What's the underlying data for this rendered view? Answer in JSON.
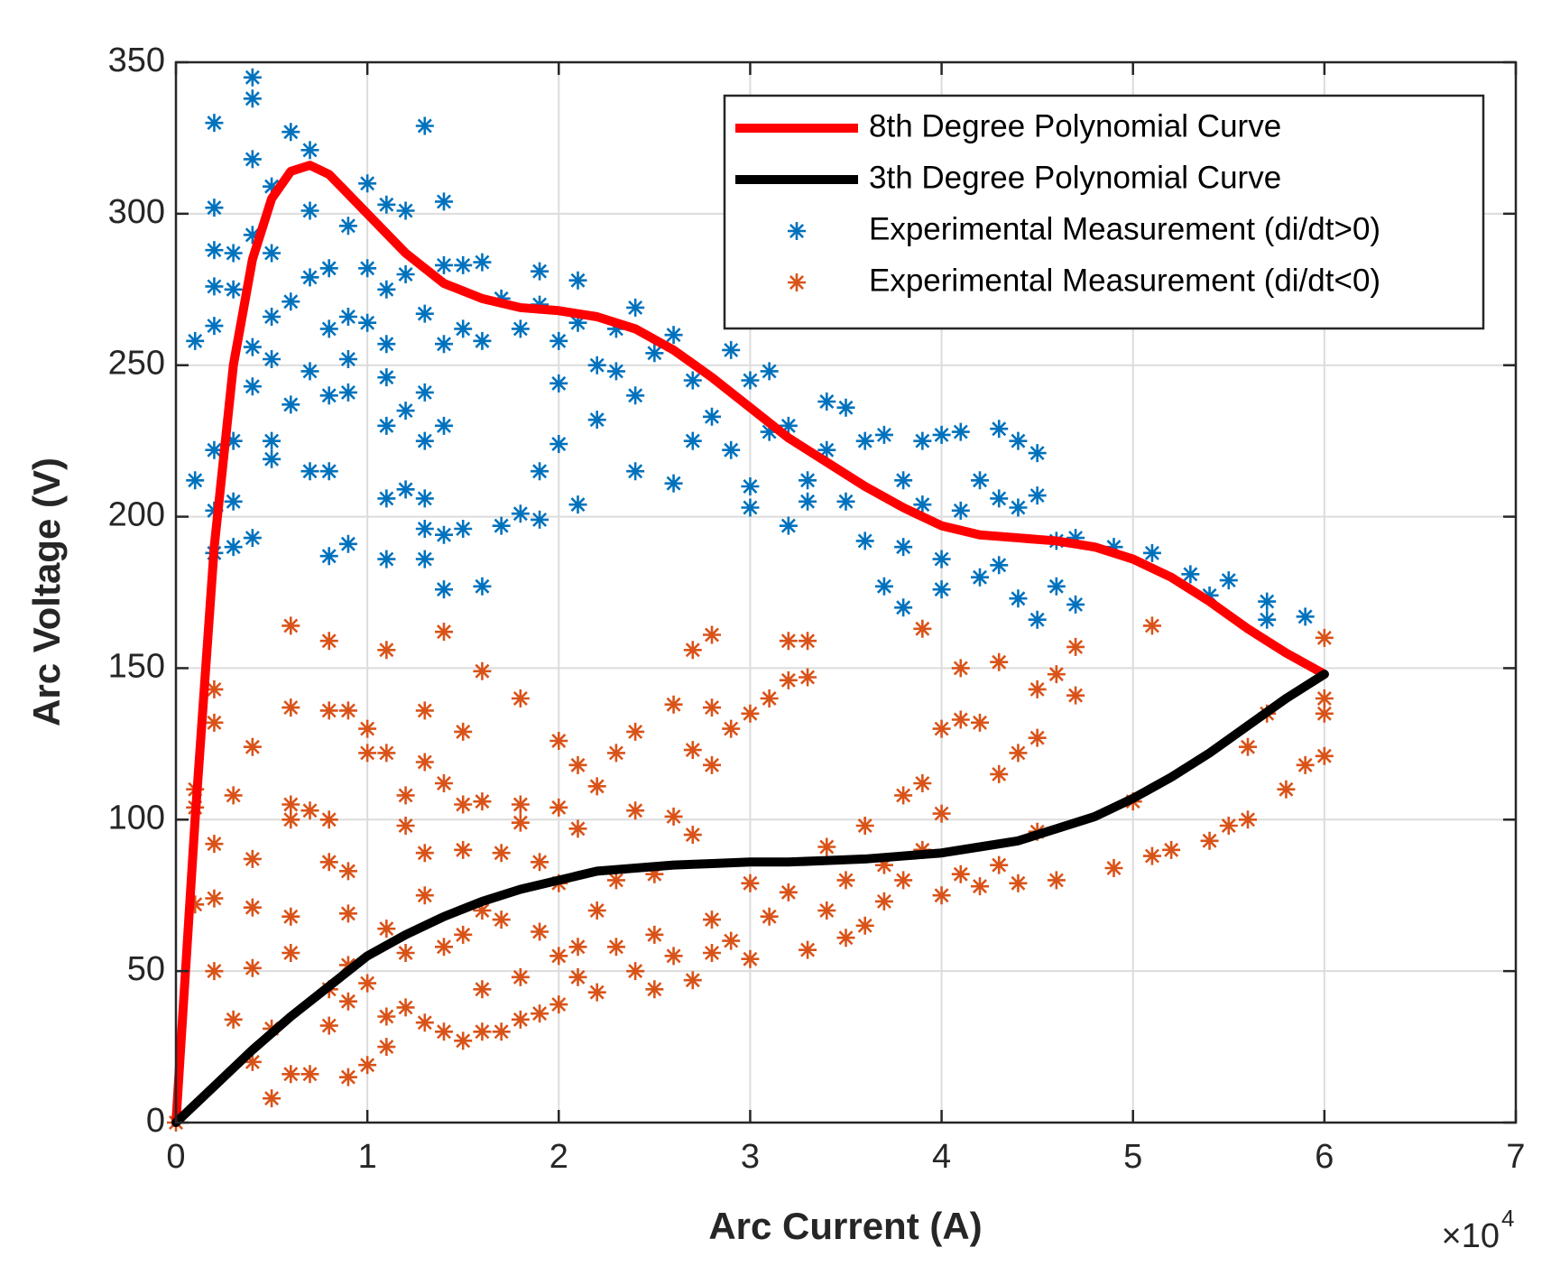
{
  "chart_data": {
    "type": "line",
    "xlabel": "Arc Current (A)",
    "ylabel": "Arc Voltage (V)",
    "x_multiplier": {
      "base": "×10",
      "exponent": "4"
    },
    "xlim": [
      0,
      7
    ],
    "xticks": [
      0,
      1,
      2,
      3,
      4,
      5,
      6,
      7
    ],
    "ylim": [
      0,
      350
    ],
    "yticks": [
      0,
      50,
      100,
      150,
      200,
      250,
      300,
      350
    ],
    "grid": true,
    "legend": "northeast",
    "series": [
      {
        "name": "8th Degree Polynomial Curve",
        "type": "line",
        "color": "#ff0000",
        "x": [
          0,
          0.1,
          0.2,
          0.3,
          0.4,
          0.5,
          0.6,
          0.7,
          0.8,
          1.0,
          1.2,
          1.4,
          1.6,
          1.8,
          2.0,
          2.2,
          2.4,
          2.6,
          2.8,
          3.0,
          3.2,
          3.4,
          3.6,
          3.8,
          4.0,
          4.2,
          4.4,
          4.6,
          4.8,
          5.0,
          5.2,
          5.4,
          5.6,
          5.8,
          6.0
        ],
        "values": [
          0,
          100,
          190,
          250,
          285,
          305,
          314,
          316,
          313,
          300,
          287,
          277,
          272,
          269,
          268,
          266,
          262,
          255,
          246,
          236,
          226,
          218,
          210,
          203,
          197,
          194,
          193,
          192,
          190,
          186,
          180,
          172,
          163,
          155,
          148
        ]
      },
      {
        "name": "3th Degree Polynomial Curve",
        "type": "line",
        "color": "#000000",
        "x": [
          0,
          0.2,
          0.4,
          0.6,
          0.8,
          1.0,
          1.2,
          1.4,
          1.6,
          1.8,
          2.0,
          2.2,
          2.4,
          2.6,
          2.8,
          3.0,
          3.2,
          3.4,
          3.6,
          3.8,
          4.0,
          4.2,
          4.4,
          4.6,
          4.8,
          5.0,
          5.2,
          5.4,
          5.6,
          5.8,
          6.0
        ],
        "values": [
          0,
          12,
          24,
          35,
          45,
          55,
          62,
          68,
          73,
          77,
          80,
          83,
          84,
          85,
          85.5,
          86,
          86,
          86.5,
          87,
          88,
          89,
          91,
          93,
          97,
          101,
          107,
          114,
          122,
          131,
          140,
          148
        ]
      },
      {
        "name": "Experimental Measurement (di/dt>0)",
        "type": "scatter",
        "color": "#0072bd",
        "x": [
          0.1,
          0.1,
          0.2,
          0.2,
          0.2,
          0.2,
          0.2,
          0.2,
          0.2,
          0.2,
          0.3,
          0.3,
          0.3,
          0.3,
          0.3,
          0.4,
          0.4,
          0.4,
          0.4,
          0.4,
          0.4,
          0.4,
          0.5,
          0.5,
          0.5,
          0.5,
          0.5,
          0.5,
          0.6,
          0.6,
          0.6,
          0.7,
          0.7,
          0.7,
          0.7,
          0.7,
          0.8,
          0.8,
          0.8,
          0.8,
          0.8,
          0.9,
          0.9,
          0.9,
          0.9,
          0.9,
          1.0,
          1.0,
          1.0,
          1.1,
          1.1,
          1.1,
          1.1,
          1.1,
          1.1,
          1.1,
          1.2,
          1.2,
          1.2,
          1.2,
          1.3,
          1.3,
          1.3,
          1.3,
          1.3,
          1.3,
          1.3,
          1.4,
          1.4,
          1.4,
          1.4,
          1.4,
          1.4,
          1.5,
          1.5,
          1.5,
          1.6,
          1.6,
          1.6,
          1.7,
          1.7,
          1.8,
          1.8,
          1.9,
          1.9,
          1.9,
          1.9,
          2.0,
          2.0,
          2.0,
          2.1,
          2.1,
          2.1,
          2.2,
          2.2,
          2.3,
          2.3,
          2.4,
          2.4,
          2.4,
          2.5,
          2.6,
          2.6,
          2.7,
          2.7,
          2.8,
          2.9,
          2.9,
          3.0,
          3.0,
          3.0,
          3.1,
          3.1,
          3.2,
          3.2,
          3.3,
          3.3,
          3.4,
          3.4,
          3.5,
          3.5,
          3.6,
          3.6,
          3.7,
          3.7,
          3.8,
          3.8,
          3.8,
          3.9,
          3.9,
          4.0,
          4.0,
          4.0,
          4.1,
          4.1,
          4.2,
          4.2,
          4.3,
          4.3,
          4.3,
          4.4,
          4.4,
          4.4,
          4.5,
          4.5,
          4.5,
          4.6,
          4.6,
          4.7,
          4.7,
          4.9,
          5.1,
          5.3,
          5.4,
          5.5,
          5.7,
          5.7,
          5.9
        ],
        "values": [
          258,
          212,
          330,
          302,
          288,
          276,
          263,
          222,
          202,
          188,
          287,
          275,
          225,
          205,
          190,
          345,
          338,
          318,
          293,
          256,
          243,
          193,
          309,
          287,
          266,
          252,
          225,
          219,
          327,
          271,
          237,
          321,
          301,
          279,
          248,
          215,
          282,
          262,
          240,
          215,
          187,
          296,
          266,
          252,
          241,
          191,
          310,
          282,
          264,
          303,
          275,
          257,
          246,
          230,
          206,
          186,
          301,
          280,
          235,
          209,
          329,
          267,
          241,
          225,
          206,
          196,
          186,
          304,
          283,
          257,
          230,
          194,
          176,
          283,
          262,
          196,
          284,
          258,
          177,
          272,
          197,
          262,
          201,
          281,
          270,
          215,
          199,
          258,
          244,
          224,
          278,
          264,
          204,
          250,
          232,
          262,
          248,
          269,
          240,
          215,
          254,
          260,
          211,
          245,
          225,
          233,
          255,
          222,
          245,
          210,
          203,
          248,
          228,
          230,
          197,
          212,
          205,
          238,
          222,
          236,
          205,
          225,
          192,
          227,
          177,
          212,
          190,
          170,
          225,
          204,
          227,
          186,
          176,
          228,
          202,
          212,
          180,
          229,
          206,
          184,
          225,
          203,
          173,
          221,
          207,
          166,
          192,
          177,
          193,
          171,
          190,
          188,
          181,
          174,
          179,
          172,
          166,
          167
        ]
      },
      {
        "name": "Experimental Measurement (di/dt<0)",
        "type": "scatter",
        "color": "#d95319",
        "x": [
          0,
          0.1,
          0.1,
          0.1,
          0.2,
          0.2,
          0.2,
          0.2,
          0.2,
          0.3,
          0.3,
          0.4,
          0.4,
          0.4,
          0.4,
          0.4,
          0.5,
          0.5,
          0.6,
          0.6,
          0.6,
          0.6,
          0.6,
          0.6,
          0.6,
          0.7,
          0.7,
          0.8,
          0.8,
          0.8,
          0.8,
          0.8,
          0.8,
          0.9,
          0.9,
          0.9,
          0.9,
          0.9,
          0.9,
          1.0,
          1.0,
          1.0,
          1.0,
          1.1,
          1.1,
          1.1,
          1.1,
          1.1,
          1.2,
          1.2,
          1.2,
          1.2,
          1.3,
          1.3,
          1.3,
          1.3,
          1.3,
          1.4,
          1.4,
          1.4,
          1.4,
          1.5,
          1.5,
          1.5,
          1.5,
          1.5,
          1.6,
          1.6,
          1.6,
          1.6,
          1.6,
          1.7,
          1.7,
          1.7,
          1.8,
          1.8,
          1.8,
          1.8,
          1.8,
          1.9,
          1.9,
          1.9,
          2.0,
          2.0,
          2.0,
          2.0,
          2.0,
          2.1,
          2.1,
          2.1,
          2.1,
          2.2,
          2.2,
          2.2,
          2.3,
          2.3,
          2.3,
          2.4,
          2.4,
          2.4,
          2.5,
          2.5,
          2.5,
          2.6,
          2.6,
          2.6,
          2.7,
          2.7,
          2.7,
          2.7,
          2.8,
          2.8,
          2.8,
          2.8,
          2.8,
          2.9,
          2.9,
          3.0,
          3.0,
          3.0,
          3.1,
          3.1,
          3.2,
          3.2,
          3.2,
          3.3,
          3.3,
          3.3,
          3.4,
          3.4,
          3.5,
          3.5,
          3.6,
          3.6,
          3.7,
          3.7,
          3.8,
          3.8,
          3.9,
          3.9,
          3.9,
          4.0,
          4.0,
          4.0,
          4.1,
          4.1,
          4.1,
          4.2,
          4.2,
          4.3,
          4.3,
          4.3,
          4.4,
          4.4,
          4.5,
          4.5,
          4.5,
          4.6,
          4.6,
          4.7,
          4.7,
          4.9,
          5.0,
          5.1,
          5.1,
          5.2,
          5.4,
          5.5,
          5.6,
          5.6,
          5.7,
          5.8,
          5.9,
          6.0,
          6.0,
          6.0,
          6.0
        ],
        "values": [
          0,
          110,
          104,
          72,
          143,
          132,
          92,
          74,
          50,
          108,
          34,
          124,
          87,
          71,
          51,
          20,
          31,
          8,
          164,
          137,
          105,
          100,
          68,
          56,
          16,
          103,
          16,
          159,
          136,
          100,
          86,
          44,
          32,
          136,
          83,
          69,
          52,
          40,
          15,
          130,
          122,
          46,
          19,
          156,
          122,
          64,
          35,
          25,
          108,
          98,
          56,
          38,
          136,
          119,
          89,
          75,
          33,
          162,
          112,
          58,
          30,
          129,
          105,
          90,
          62,
          27,
          149,
          106,
          70,
          44,
          30,
          89,
          67,
          30,
          140,
          105,
          99,
          48,
          34,
          86,
          63,
          36,
          126,
          104,
          79,
          55,
          39,
          118,
          97,
          58,
          48,
          111,
          70,
          43,
          122,
          80,
          58,
          129,
          103,
          50,
          82,
          62,
          44,
          138,
          101,
          55,
          156,
          123,
          95,
          47,
          161,
          137,
          118,
          67,
          56,
          130,
          60,
          135,
          79,
          54,
          140,
          68,
          159,
          146,
          76,
          159,
          147,
          57,
          91,
          70,
          80,
          61,
          98,
          65,
          85,
          73,
          108,
          80,
          112,
          90,
          163,
          130,
          102,
          75,
          150,
          133,
          82,
          132,
          78,
          152,
          115,
          85,
          122,
          79,
          143,
          127,
          96,
          148,
          80,
          157,
          141,
          84,
          106,
          164,
          88,
          90,
          93,
          98,
          124,
          100,
          135,
          110,
          118,
          160,
          140,
          121,
          135
        ]
      }
    ]
  }
}
